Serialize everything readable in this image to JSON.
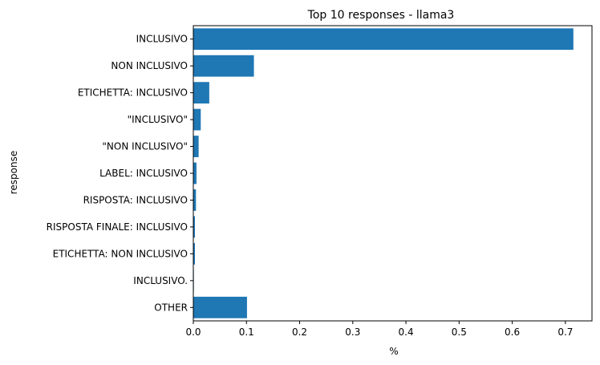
{
  "chart_data": {
    "type": "bar",
    "orientation": "horizontal",
    "title": "Top 10 responses - llama3",
    "xlabel": "%",
    "ylabel": "response",
    "categories": [
      "INCLUSIVO",
      "NON INCLUSIVO",
      "ETICHETTA: INCLUSIVO",
      "\"INCLUSIVO\"",
      "\"NON INCLUSIVO\"",
      "LABEL: INCLUSIVO",
      "RISPOSTA: INCLUSIVO",
      "RISPOSTA FINALE: INCLUSIVO",
      "ETICHETTA: NON INCLUSIVO",
      "INCLUSIVO.",
      "OTHER"
    ],
    "values": [
      0.715,
      0.114,
      0.03,
      0.014,
      0.01,
      0.006,
      0.005,
      0.003,
      0.003,
      0.001,
      0.101
    ],
    "xlim": [
      0,
      0.75
    ],
    "xticks": [
      0.0,
      0.1,
      0.2,
      0.3,
      0.4,
      0.5,
      0.6,
      0.7
    ],
    "xtick_labels": [
      "0.0",
      "0.1",
      "0.2",
      "0.3",
      "0.4",
      "0.5",
      "0.6",
      "0.7"
    ],
    "bar_color": "#1f77b4",
    "grid": false,
    "legend": "none"
  }
}
